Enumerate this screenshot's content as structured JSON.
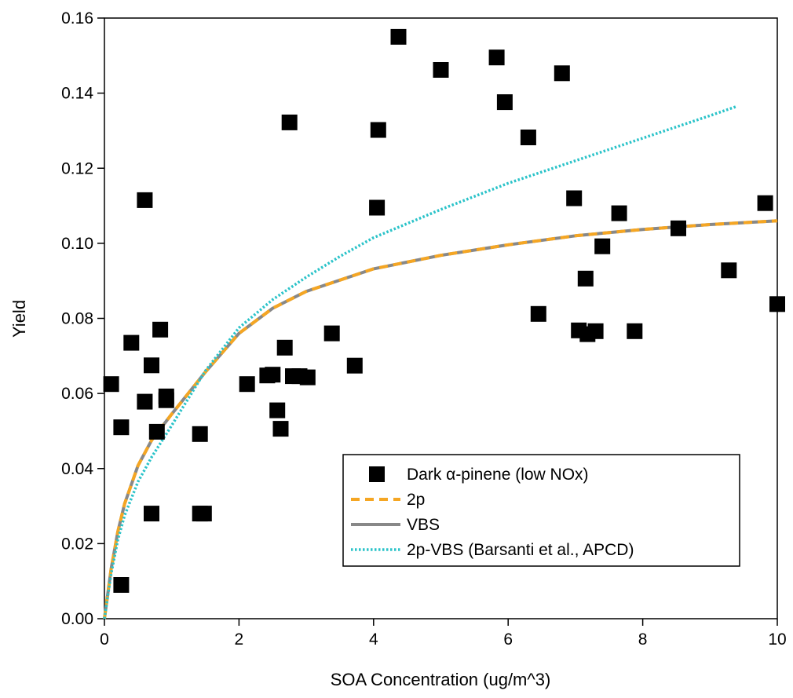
{
  "chart_data": {
    "type": "scatter",
    "xlabel": "SOA Concentration (ug/m^3)",
    "ylabel": "Yield",
    "xlim": [
      0,
      10
    ],
    "ylim": [
      0,
      0.16
    ],
    "x_ticks": [
      "0",
      "2",
      "4",
      "6",
      "8",
      "10"
    ],
    "y_ticks": [
      "0.00",
      "0.02",
      "0.04",
      "0.06",
      "0.08",
      "0.10",
      "0.12",
      "0.14",
      "0.16"
    ],
    "grid": false,
    "legend_position": "bottom-right",
    "series": [
      {
        "name": "Dark α-pinene (low NOx)",
        "kind": "scatter",
        "marker": "square",
        "color": "#000000",
        "points": [
          [
            0.1,
            0.0625
          ],
          [
            0.25,
            0.051
          ],
          [
            0.25,
            0.009
          ],
          [
            0.4,
            0.0735
          ],
          [
            0.6,
            0.1115
          ],
          [
            0.6,
            0.0578
          ],
          [
            0.7,
            0.0675
          ],
          [
            0.7,
            0.028
          ],
          [
            0.78,
            0.0498
          ],
          [
            0.83,
            0.077
          ],
          [
            0.92,
            0.0582
          ],
          [
            0.92,
            0.0592
          ],
          [
            1.42,
            0.0492
          ],
          [
            1.42,
            0.028
          ],
          [
            1.48,
            0.028
          ],
          [
            2.12,
            0.0625
          ],
          [
            2.42,
            0.0648
          ],
          [
            2.5,
            0.065
          ],
          [
            2.57,
            0.0555
          ],
          [
            2.62,
            0.0506
          ],
          [
            2.68,
            0.0722
          ],
          [
            2.75,
            0.1322
          ],
          [
            2.8,
            0.0646
          ],
          [
            2.9,
            0.0646
          ],
          [
            3.02,
            0.0643
          ],
          [
            3.38,
            0.076
          ],
          [
            3.72,
            0.0674
          ],
          [
            4.05,
            0.1095
          ],
          [
            4.07,
            0.1302
          ],
          [
            4.37,
            0.155
          ],
          [
            5.0,
            0.1462
          ],
          [
            5.83,
            0.1495
          ],
          [
            5.95,
            0.1376
          ],
          [
            6.3,
            0.1282
          ],
          [
            6.45,
            0.0812
          ],
          [
            6.8,
            0.1453
          ],
          [
            6.98,
            0.112
          ],
          [
            7.05,
            0.0768
          ],
          [
            7.15,
            0.0906
          ],
          [
            7.18,
            0.0758
          ],
          [
            7.3,
            0.0766
          ],
          [
            7.4,
            0.0992
          ],
          [
            7.65,
            0.108
          ],
          [
            7.88,
            0.0766
          ],
          [
            8.53,
            0.104
          ],
          [
            9.28,
            0.0928
          ],
          [
            9.82,
            0.1107
          ],
          [
            10.0,
            0.0838
          ]
        ]
      },
      {
        "name": "2p",
        "kind": "line",
        "style": "dashed",
        "color": "#f5a623",
        "x": [
          0,
          0.1,
          0.2,
          0.3,
          0.5,
          0.7,
          1.0,
          1.5,
          2.0,
          2.5,
          3.0,
          4.0,
          5.0,
          6.0,
          7.0,
          8.0,
          9.0,
          10.0
        ],
        "y": [
          0,
          0.0133,
          0.0232,
          0.0306,
          0.0408,
          0.0475,
          0.0545,
          0.0657,
          0.076,
          0.0827,
          0.0872,
          0.0932,
          0.0968,
          0.0996,
          0.102,
          0.1037,
          0.105,
          0.106
        ]
      },
      {
        "name": "VBS",
        "kind": "line",
        "style": "solid",
        "color": "#888888",
        "x": [
          0,
          0.1,
          0.2,
          0.3,
          0.5,
          0.7,
          1.0,
          1.5,
          2.0,
          2.5,
          3.0,
          4.0,
          5.0,
          6.0,
          7.0,
          8.0,
          9.0,
          10.0
        ],
        "y": [
          0,
          0.0133,
          0.0232,
          0.0306,
          0.0408,
          0.0475,
          0.0545,
          0.0657,
          0.076,
          0.0827,
          0.0872,
          0.0932,
          0.0968,
          0.0996,
          0.102,
          0.1037,
          0.105,
          0.106
        ]
      },
      {
        "name": "2p-VBS (Barsanti et al., APCD)",
        "kind": "line",
        "style": "dotted",
        "color": "#2bc3c9",
        "x": [
          0,
          0.1,
          0.2,
          0.3,
          0.5,
          0.7,
          1.0,
          1.5,
          2.0,
          2.5,
          3.0,
          3.5,
          4.0,
          5.0,
          6.0,
          7.0,
          8.0,
          9.0,
          9.4
        ],
        "y": [
          0,
          0.012,
          0.021,
          0.0275,
          0.0365,
          0.043,
          0.0515,
          0.066,
          0.0775,
          0.085,
          0.091,
          0.0965,
          0.1015,
          0.109,
          0.116,
          0.122,
          0.128,
          0.134,
          0.1365
        ]
      }
    ]
  }
}
